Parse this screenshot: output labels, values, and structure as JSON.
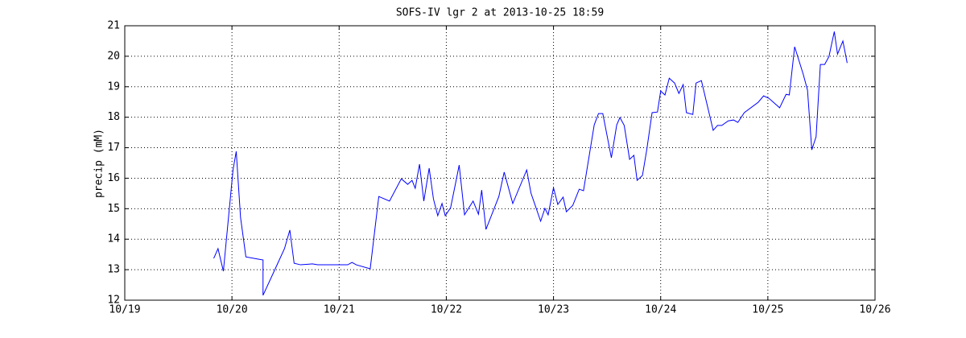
{
  "chart_data": {
    "type": "line",
    "title": "SOFS-IV lgr 2 at 2013-10-25 18:59",
    "ylabel": "precip (mM)",
    "x": [
      19.83,
      19.87,
      19.92,
      20.01,
      20.04,
      20.08,
      20.13,
      20.24,
      20.29,
      20.29,
      20.4,
      20.49,
      20.54,
      20.58,
      20.64,
      20.75,
      20.8,
      20.99,
      21.08,
      21.12,
      21.16,
      21.29,
      21.37,
      21.47,
      21.58,
      21.64,
      21.68,
      21.71,
      21.75,
      21.79,
      21.84,
      21.88,
      21.92,
      21.96,
      21.99,
      22.04,
      22.09,
      22.12,
      22.17,
      22.25,
      22.3,
      22.33,
      22.37,
      22.49,
      22.54,
      22.62,
      22.75,
      22.79,
      22.88,
      22.92,
      22.95,
      23.0,
      23.04,
      23.09,
      23.12,
      23.18,
      23.24,
      23.28,
      23.38,
      23.42,
      23.46,
      23.54,
      23.59,
      23.62,
      23.66,
      23.71,
      23.75,
      23.78,
      23.83,
      23.87,
      23.92,
      23.97,
      24.0,
      24.04,
      24.08,
      24.13,
      24.17,
      24.21,
      24.24,
      24.3,
      24.33,
      24.38,
      24.49,
      24.53,
      24.57,
      24.63,
      24.68,
      24.72,
      24.78,
      24.91,
      24.96,
      25.01,
      25.11,
      25.17,
      25.2,
      25.25,
      25.33,
      25.37,
      25.41,
      25.45,
      25.49,
      25.53,
      25.57,
      25.62,
      25.65,
      25.7,
      25.74
    ],
    "series": [
      {
        "name": "precip",
        "color": "#0000ff",
        "values": [
          13.37,
          13.69,
          12.95,
          16.27,
          16.88,
          14.72,
          13.42,
          13.35,
          13.32,
          12.16,
          13.0,
          13.69,
          14.3,
          13.21,
          13.16,
          13.19,
          13.16,
          13.16,
          13.16,
          13.24,
          13.16,
          13.03,
          15.4,
          15.25,
          15.98,
          15.8,
          15.93,
          15.67,
          16.46,
          15.25,
          16.33,
          15.32,
          14.77,
          15.17,
          14.77,
          15.03,
          15.9,
          16.43,
          14.8,
          15.25,
          14.82,
          15.61,
          14.32,
          15.4,
          16.2,
          15.17,
          16.27,
          15.51,
          14.59,
          15.01,
          14.8,
          15.69,
          15.14,
          15.38,
          14.9,
          15.11,
          15.64,
          15.59,
          17.75,
          18.12,
          18.12,
          16.67,
          17.75,
          17.99,
          17.73,
          16.62,
          16.75,
          15.93,
          16.09,
          16.93,
          18.15,
          18.17,
          18.86,
          18.73,
          19.28,
          19.12,
          18.78,
          19.07,
          18.15,
          18.09,
          19.12,
          19.2,
          17.57,
          17.73,
          17.73,
          17.88,
          17.91,
          17.83,
          18.15,
          18.49,
          18.7,
          18.62,
          18.31,
          18.75,
          18.73,
          20.31,
          19.41,
          18.89,
          16.93,
          17.36,
          19.73,
          19.73,
          19.99,
          20.81,
          20.07,
          20.5,
          19.78
        ]
      }
    ],
    "xlim": [
      19,
      26
    ],
    "xticks": [
      {
        "value": 19,
        "label": "10/19"
      },
      {
        "value": 20,
        "label": "10/20"
      },
      {
        "value": 21,
        "label": "10/21"
      },
      {
        "value": 22,
        "label": "10/22"
      },
      {
        "value": 23,
        "label": "10/23"
      },
      {
        "value": 24,
        "label": "10/24"
      },
      {
        "value": 25,
        "label": "10/25"
      },
      {
        "value": 26,
        "label": "10/26"
      }
    ],
    "ylim": [
      12,
      21
    ],
    "yticks": [
      12,
      13,
      14,
      15,
      16,
      17,
      18,
      19,
      20,
      21
    ],
    "grid": true
  }
}
